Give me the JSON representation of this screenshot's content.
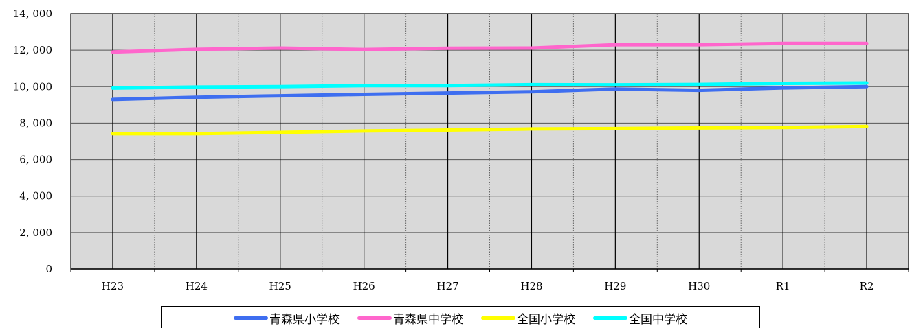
{
  "chart_data": {
    "type": "line",
    "title": "",
    "xlabel": "",
    "ylabel": "",
    "categories": [
      "H23",
      "H24",
      "H25",
      "H26",
      "H27",
      "H28",
      "H29",
      "H30",
      "R1",
      "R2"
    ],
    "ylim": [
      0,
      14000
    ],
    "yticks": [
      "0",
      "2, 000",
      "4, 000",
      "6, 000",
      "8, 000",
      "10, 000",
      "12, 000",
      "14, 000"
    ],
    "grid": true,
    "legend_position": "bottom",
    "series": [
      {
        "name": "青森県小学校",
        "color": "#3e6ef0",
        "values": [
          9300,
          9420,
          9500,
          9580,
          9650,
          9720,
          9870,
          9800,
          9930,
          10000
        ]
      },
      {
        "name": "青森県中学校",
        "color": "#ff66cc",
        "values": [
          11900,
          12050,
          12120,
          12040,
          12110,
          12120,
          12300,
          12300,
          12370,
          12370
        ]
      },
      {
        "name": "全国小学校",
        "color": "#ffff00",
        "values": [
          7420,
          7420,
          7490,
          7570,
          7620,
          7680,
          7700,
          7740,
          7760,
          7820
        ]
      },
      {
        "name": "全国中学校",
        "color": "#00ffff",
        "values": [
          9920,
          9980,
          10000,
          10060,
          10060,
          10110,
          10100,
          10120,
          10180,
          10200
        ]
      }
    ]
  }
}
